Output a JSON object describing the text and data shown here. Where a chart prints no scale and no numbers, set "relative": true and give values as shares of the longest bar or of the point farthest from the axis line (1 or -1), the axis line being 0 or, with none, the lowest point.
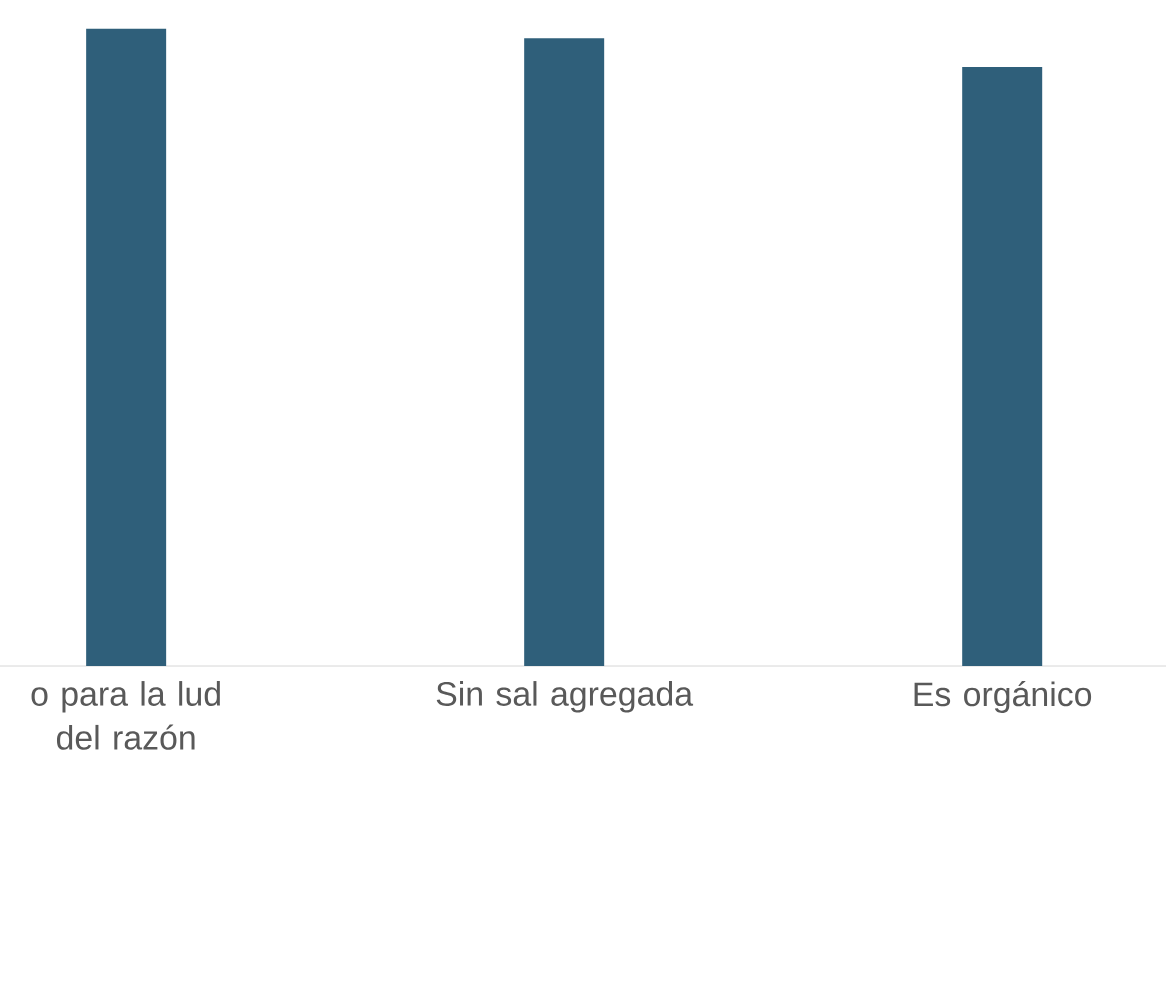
{
  "chart_data": {
    "type": "bar",
    "relative": true,
    "color": "#2f5f7a",
    "categories": [
      "o para la lud del razón",
      "Sin sal agregada",
      "Es orgánico"
    ],
    "values": [
      1,
      0.985,
      0.94
    ]
  }
}
